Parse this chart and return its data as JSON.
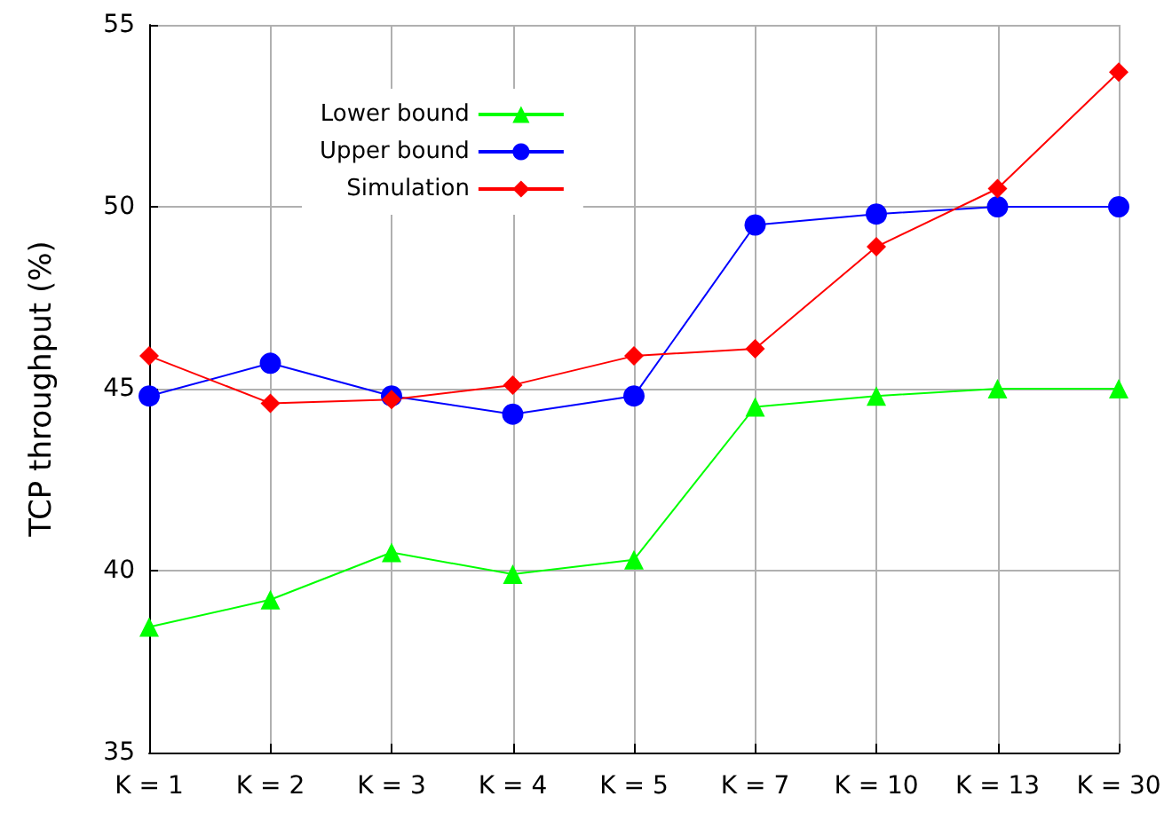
{
  "chart_data": {
    "type": "line",
    "ylabel": "TCP throughput (%)",
    "categories": [
      "K = 1",
      "K = 2",
      "K = 3",
      "K = 4",
      "K = 5",
      "K = 7",
      "K = 10",
      "K = 13",
      "K = 30"
    ],
    "series": [
      {
        "name": "Lower bound",
        "color": "#00ff00",
        "marker": "triangle",
        "values": [
          38.45,
          39.2,
          40.5,
          39.9,
          40.3,
          44.5,
          44.8,
          45,
          45
        ]
      },
      {
        "name": "Upper bound",
        "color": "#0000ff",
        "marker": "circle",
        "values": [
          44.8,
          45.7,
          44.8,
          44.3,
          44.8,
          49.5,
          49.8,
          50,
          50
        ]
      },
      {
        "name": "Simulation",
        "color": "#ff0000",
        "marker": "diamond",
        "values": [
          45.9,
          44.6,
          44.7,
          45.1,
          45.9,
          46.1,
          48.9,
          50.5,
          53.7
        ]
      }
    ],
    "ylim": [
      35,
      55
    ],
    "yticks": [
      35,
      40,
      45,
      50,
      55
    ],
    "grid": true,
    "legend": "top left",
    "line_style": "solid"
  }
}
